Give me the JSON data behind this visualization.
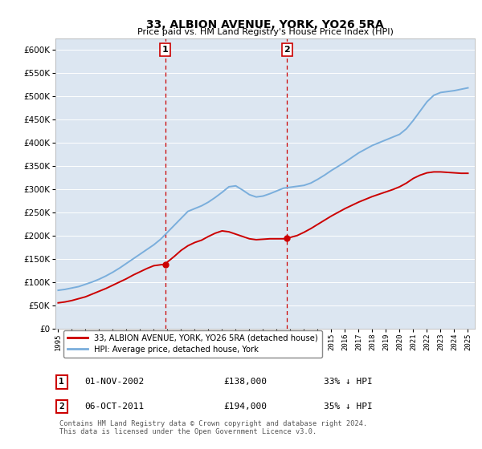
{
  "title1": "33, ALBION AVENUE, YORK, YO26 5RA",
  "title2": "Price paid vs. HM Land Registry's House Price Index (HPI)",
  "yticks": [
    0,
    50000,
    100000,
    150000,
    200000,
    250000,
    300000,
    350000,
    400000,
    450000,
    500000,
    550000,
    600000
  ],
  "ylim": [
    0,
    625000
  ],
  "xlim": [
    1994.8,
    2025.5
  ],
  "xtick_years": [
    1995,
    1996,
    1997,
    1998,
    1999,
    2000,
    2001,
    2002,
    2003,
    2004,
    2005,
    2006,
    2007,
    2008,
    2009,
    2010,
    2011,
    2012,
    2013,
    2014,
    2015,
    2016,
    2017,
    2018,
    2019,
    2020,
    2021,
    2022,
    2023,
    2024,
    2025
  ],
  "legend_label1": "33, ALBION AVENUE, YORK, YO26 5RA (detached house)",
  "legend_label2": "HPI: Average price, detached house, York",
  "ann1_label": "1",
  "ann1_date": "01-NOV-2002",
  "ann1_price": "£138,000",
  "ann1_pct": "33% ↓ HPI",
  "ann1_x": 2002.83,
  "ann1_y": 138000,
  "ann2_label": "2",
  "ann2_date": "06-OCT-2011",
  "ann2_price": "£194,000",
  "ann2_pct": "35% ↓ HPI",
  "ann2_x": 2011.75,
  "ann2_y": 194000,
  "line1_color": "#cc0000",
  "line2_color": "#7aaedc",
  "vline_color": "#cc0000",
  "plot_bg": "#dce6f1",
  "footnote": "Contains HM Land Registry data © Crown copyright and database right 2024.\nThis data is licensed under the Open Government Licence v3.0.",
  "hpi_x": [
    1995.0,
    1995.5,
    1996.0,
    1996.5,
    1997.0,
    1997.5,
    1998.0,
    1998.5,
    1999.0,
    1999.5,
    2000.0,
    2000.5,
    2001.0,
    2001.5,
    2002.0,
    2002.5,
    2003.0,
    2003.5,
    2004.0,
    2004.5,
    2005.0,
    2005.5,
    2006.0,
    2006.5,
    2007.0,
    2007.5,
    2008.0,
    2008.5,
    2009.0,
    2009.5,
    2010.0,
    2010.5,
    2011.0,
    2011.5,
    2012.0,
    2012.5,
    2013.0,
    2013.5,
    2014.0,
    2014.5,
    2015.0,
    2015.5,
    2016.0,
    2016.5,
    2017.0,
    2017.5,
    2018.0,
    2018.5,
    2019.0,
    2019.5,
    2020.0,
    2020.5,
    2021.0,
    2021.5,
    2022.0,
    2022.5,
    2023.0,
    2023.5,
    2024.0,
    2024.5,
    2025.0
  ],
  "hpi_y": [
    82000,
    84000,
    87000,
    90000,
    95000,
    100000,
    106000,
    113000,
    121000,
    130000,
    140000,
    150000,
    160000,
    170000,
    180000,
    192000,
    207000,
    222000,
    237000,
    252000,
    258000,
    264000,
    272000,
    282000,
    293000,
    305000,
    307000,
    298000,
    288000,
    283000,
    285000,
    290000,
    296000,
    302000,
    304000,
    306000,
    308000,
    313000,
    321000,
    330000,
    340000,
    349000,
    358000,
    368000,
    378000,
    386000,
    394000,
    400000,
    406000,
    412000,
    418000,
    430000,
    448000,
    468000,
    488000,
    502000,
    508000,
    510000,
    512000,
    515000,
    518000
  ],
  "prop_x": [
    1995.0,
    1995.5,
    1996.0,
    1996.5,
    1997.0,
    1997.5,
    1998.0,
    1998.5,
    1999.0,
    1999.5,
    2000.0,
    2000.5,
    2001.0,
    2001.5,
    2002.0,
    2002.5,
    2002.83,
    2003.0,
    2003.5,
    2004.0,
    2004.5,
    2005.0,
    2005.5,
    2006.0,
    2006.5,
    2007.0,
    2007.5,
    2008.0,
    2008.5,
    2009.0,
    2009.5,
    2010.0,
    2010.5,
    2011.0,
    2011.5,
    2011.75,
    2012.0,
    2012.5,
    2013.0,
    2013.5,
    2014.0,
    2014.5,
    2015.0,
    2015.5,
    2016.0,
    2016.5,
    2017.0,
    2017.5,
    2018.0,
    2018.5,
    2019.0,
    2019.5,
    2020.0,
    2020.5,
    2021.0,
    2021.5,
    2022.0,
    2022.5,
    2023.0,
    2023.5,
    2024.0,
    2024.5,
    2025.0
  ],
  "prop_y": [
    55000,
    57000,
    60000,
    64000,
    68000,
    74000,
    80000,
    86000,
    93000,
    100000,
    107000,
    115000,
    122000,
    129000,
    135000,
    137000,
    138000,
    143000,
    155000,
    168000,
    178000,
    185000,
    190000,
    198000,
    205000,
    210000,
    208000,
    203000,
    198000,
    193000,
    191000,
    192000,
    193000,
    193000,
    193000,
    194000,
    196000,
    200000,
    207000,
    215000,
    224000,
    233000,
    242000,
    250000,
    258000,
    265000,
    272000,
    278000,
    284000,
    289000,
    294000,
    299000,
    305000,
    313000,
    323000,
    330000,
    335000,
    337000,
    337000,
    336000,
    335000,
    334000,
    334000
  ]
}
